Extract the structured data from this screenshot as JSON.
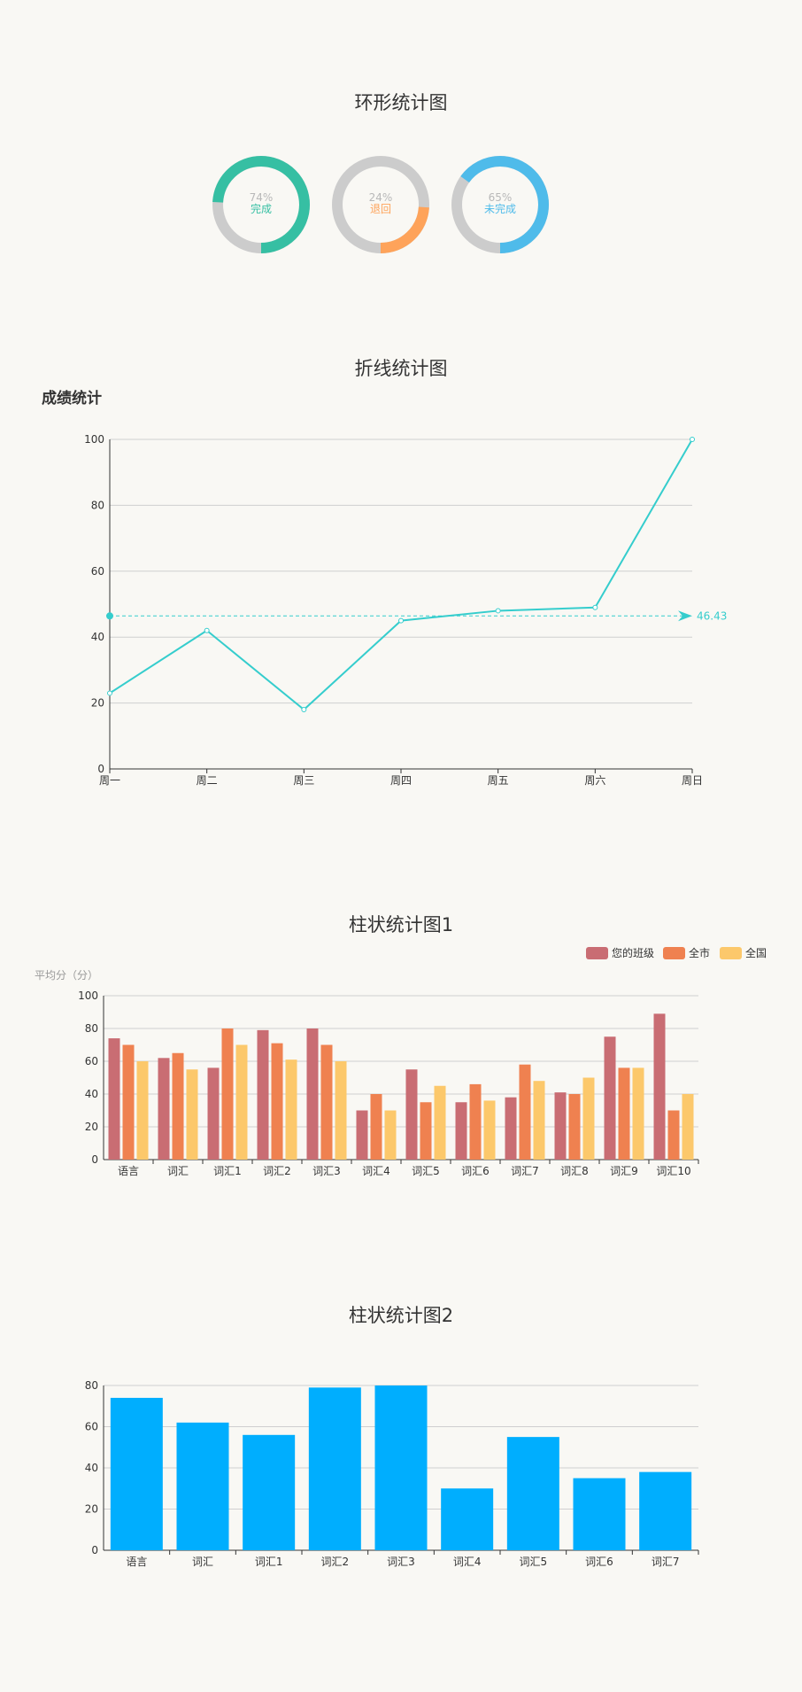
{
  "colors": {
    "donut_track": "#cccccc",
    "line": "#35cdcd",
    "bar_class": "#c96d73",
    "bar_city": "#ef8150",
    "bar_nation": "#fcc86b",
    "bar_single": "#00aefe"
  },
  "sections": {
    "ring_title": "环形统计图",
    "line_title": "折线统计图",
    "bar1_title": "柱状统计图1",
    "bar2_title": "柱状统计图2"
  },
  "chart_data": [
    {
      "type": "pie",
      "variant": "donut",
      "title": "",
      "slices": [
        {
          "percent_label": "74%",
          "label": "完成",
          "value": 74,
          "color": "#36bfa3"
        },
        {
          "percent_label": "24%",
          "label": "退回",
          "value": 24,
          "color": "#fea35a"
        },
        {
          "percent_label": "65%",
          "label": "未完成",
          "value": 65,
          "color": "#4fbbea"
        }
      ]
    },
    {
      "type": "line",
      "title": "成绩统计",
      "categories": [
        "周一",
        "周二",
        "周三",
        "周四",
        "周五",
        "周六",
        "周日"
      ],
      "values": [
        23,
        42,
        18,
        45,
        48,
        49,
        100
      ],
      "ylim": [
        0,
        100
      ],
      "yticks": [
        0,
        20,
        40,
        60,
        80,
        100
      ],
      "mark_line": {
        "type": "average",
        "value": 46.43,
        "label": "46.43"
      },
      "grid": true
    },
    {
      "type": "bar",
      "title": "",
      "ylabel": "平均分（分）",
      "categories": [
        "语言",
        "词汇",
        "词汇1",
        "词汇2",
        "词汇3",
        "词汇4",
        "词汇5",
        "词汇6",
        "词汇7",
        "词汇8",
        "词汇9",
        "词汇10"
      ],
      "series": [
        {
          "name": "您的班级",
          "values": [
            74,
            62,
            56,
            79,
            80,
            30,
            55,
            35,
            38,
            41,
            75,
            89
          ]
        },
        {
          "name": "全市",
          "values": [
            70,
            65,
            80,
            71,
            70,
            40,
            35,
            46,
            58,
            40,
            56,
            30
          ]
        },
        {
          "name": "全国",
          "values": [
            60,
            55,
            70,
            61,
            60,
            30,
            45,
            36,
            48,
            50,
            56,
            40
          ]
        }
      ],
      "ylim": [
        0,
        100
      ],
      "yticks": [
        0,
        20,
        40,
        60,
        80,
        100
      ],
      "legend": "top-right",
      "grid": true
    },
    {
      "type": "bar",
      "title": "",
      "categories": [
        "语言",
        "词汇",
        "词汇1",
        "词汇2",
        "词汇3",
        "词汇4",
        "词汇5",
        "词汇6",
        "词汇7"
      ],
      "values": [
        74,
        62,
        56,
        79,
        80,
        30,
        55,
        35,
        38
      ],
      "ylim": [
        0,
        80
      ],
      "yticks": [
        0,
        20,
        40,
        60,
        80
      ],
      "grid": true
    }
  ]
}
